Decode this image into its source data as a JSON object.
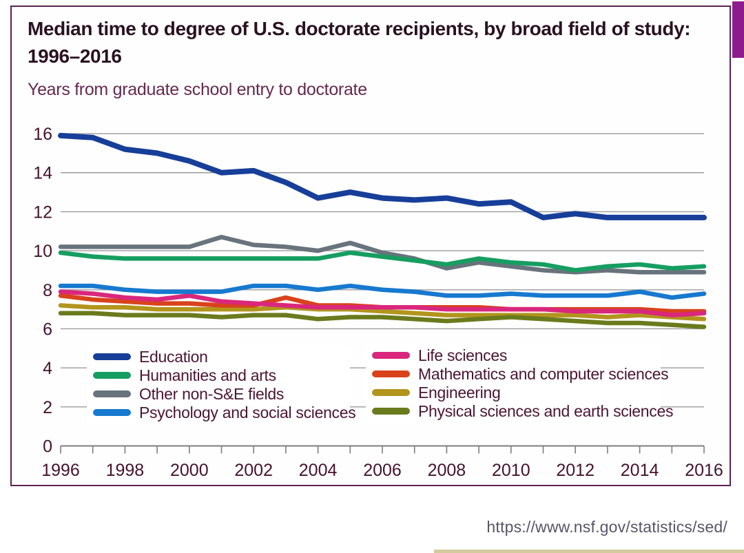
{
  "chart": {
    "title_line1": "Median time to degree of U.S. doctorate recipients, by broad field of study:",
    "title_line2": "1996–2016",
    "subtitle": "Years from graduate school entry to doctorate"
  },
  "footer": {
    "url_caption": "https://www.nsf.gov/statistics/sed/"
  },
  "colors": {
    "card_border": "#5c2150",
    "corner_tab": "#8e1b8e",
    "gridline": "#9b9b9b",
    "axis": "#7d7d7d",
    "axis_text": "#44132c",
    "legend_text": "#4a1633"
  },
  "chart_data": {
    "type": "line",
    "title": "Median time to degree of U.S. doctorate recipients, by broad field of study: 1996–2016",
    "ylabel": "Years from graduate school entry to doctorate",
    "ylim": [
      0,
      16
    ],
    "y_ticks": [
      0,
      2,
      4,
      6,
      8,
      10,
      12,
      14,
      16
    ],
    "x": [
      1996,
      1997,
      1998,
      1999,
      2000,
      2001,
      2002,
      2003,
      2004,
      2005,
      2006,
      2007,
      2008,
      2009,
      2010,
      2011,
      2012,
      2013,
      2014,
      2015,
      2016
    ],
    "x_tick_labels": [
      1996,
      1998,
      2000,
      2002,
      2004,
      2006,
      2008,
      2010,
      2012,
      2014,
      2016
    ],
    "grid": "horizontal",
    "legend_position": "inside-bottom-two-columns",
    "series": [
      {
        "name": "Education",
        "color": "#173f99",
        "values": [
          15.9,
          15.8,
          15.2,
          15.0,
          14.6,
          14.0,
          14.1,
          13.5,
          12.7,
          13.0,
          12.7,
          12.6,
          12.7,
          12.4,
          12.5,
          11.7,
          11.9,
          11.7,
          11.7,
          11.7,
          11.7
        ]
      },
      {
        "name": "Humanities and arts",
        "color": "#169e61",
        "values": [
          9.9,
          9.7,
          9.6,
          9.6,
          9.6,
          9.6,
          9.6,
          9.6,
          9.6,
          9.9,
          9.7,
          9.5,
          9.3,
          9.6,
          9.4,
          9.3,
          9.0,
          9.2,
          9.3,
          9.1,
          9.2
        ]
      },
      {
        "name": "Other non-S&E fields",
        "color": "#68737c",
        "values": [
          10.2,
          10.2,
          10.2,
          10.2,
          10.2,
          10.7,
          10.3,
          10.2,
          10.0,
          10.4,
          9.9,
          9.6,
          9.1,
          9.4,
          9.2,
          9.0,
          8.9,
          9.0,
          8.9,
          8.9,
          8.9
        ]
      },
      {
        "name": "Psychology and social sciences",
        "color": "#1779cf",
        "values": [
          8.2,
          8.2,
          8.0,
          7.9,
          7.9,
          7.9,
          8.2,
          8.2,
          8.0,
          8.2,
          8.0,
          7.9,
          7.7,
          7.7,
          7.8,
          7.7,
          7.7,
          7.7,
          7.9,
          7.6,
          7.8
        ]
      },
      {
        "name": "Life sciences",
        "color": "#d9277d",
        "values": [
          7.9,
          7.8,
          7.6,
          7.5,
          7.7,
          7.4,
          7.3,
          7.2,
          7.1,
          7.1,
          7.1,
          7.1,
          7.0,
          7.0,
          7.0,
          7.0,
          6.9,
          6.9,
          6.9,
          6.7,
          6.8
        ]
      },
      {
        "name": "Mathematics and computer sciences",
        "color": "#d8431b",
        "values": [
          7.7,
          7.5,
          7.4,
          7.3,
          7.3,
          7.2,
          7.2,
          7.6,
          7.2,
          7.2,
          7.1,
          7.1,
          7.1,
          7.1,
          7.0,
          7.0,
          7.0,
          7.0,
          7.0,
          6.9,
          6.9
        ]
      },
      {
        "name": "Engineering",
        "color": "#b2951d",
        "values": [
          7.2,
          7.1,
          7.1,
          7.0,
          7.0,
          7.0,
          7.0,
          7.1,
          7.0,
          7.0,
          6.9,
          6.8,
          6.7,
          6.7,
          6.7,
          6.7,
          6.7,
          6.6,
          6.7,
          6.6,
          6.5
        ]
      },
      {
        "name": "Physical sciences and earth sciences",
        "color": "#6a7b1d",
        "values": [
          6.8,
          6.8,
          6.7,
          6.7,
          6.7,
          6.6,
          6.7,
          6.7,
          6.5,
          6.6,
          6.6,
          6.5,
          6.4,
          6.5,
          6.6,
          6.5,
          6.4,
          6.3,
          6.3,
          6.2,
          6.1
        ]
      }
    ]
  }
}
